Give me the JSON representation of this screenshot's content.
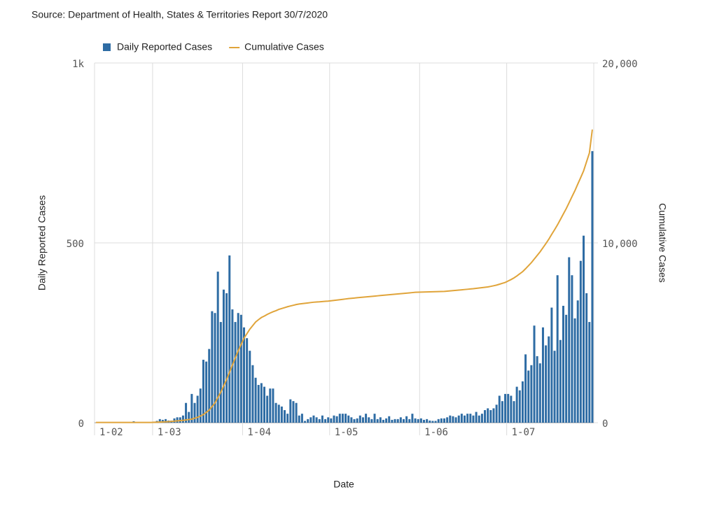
{
  "chart_data": {
    "type": "combo",
    "title": "Source: Department of Health, States & Territories Report 30/7/2020",
    "xlabel": "Date",
    "ylabel": "Daily Reported Cases",
    "y2label": "Cumulative Cases",
    "categories": [
      "1-02",
      null,
      null,
      null,
      null,
      null,
      null,
      null,
      null,
      null,
      null,
      null,
      null,
      null,
      null,
      null,
      null,
      null,
      null,
      null,
      "1-03",
      null,
      null,
      null,
      null,
      null,
      null,
      null,
      null,
      null,
      null,
      null,
      null,
      null,
      null,
      null,
      null,
      null,
      null,
      null,
      null,
      null,
      null,
      null,
      null,
      null,
      null,
      null,
      null,
      null,
      null,
      "1-04",
      null,
      null,
      null,
      null,
      null,
      null,
      null,
      null,
      null,
      null,
      null,
      null,
      null,
      null,
      null,
      null,
      null,
      null,
      null,
      null,
      null,
      null,
      null,
      null,
      null,
      null,
      null,
      null,
      null,
      "1-05",
      null,
      null,
      null,
      null,
      null,
      null,
      null,
      null,
      null,
      null,
      null,
      null,
      null,
      null,
      null,
      null,
      null,
      null,
      null,
      null,
      null,
      null,
      null,
      null,
      null,
      null,
      null,
      null,
      null,
      null,
      "1-06",
      null,
      null,
      null,
      null,
      null,
      null,
      null,
      null,
      null,
      null,
      null,
      null,
      null,
      null,
      null,
      null,
      null,
      null,
      null,
      null,
      null,
      null,
      null,
      null,
      null,
      null,
      null,
      null,
      null,
      "1-07",
      null,
      null,
      null,
      null,
      null,
      null,
      null,
      null,
      null,
      null,
      null,
      null,
      null,
      null,
      null,
      null,
      null,
      null,
      null,
      null,
      null,
      null,
      null,
      null,
      null,
      null,
      null,
      null,
      null
    ],
    "series": [
      {
        "name": "Daily Reported Cases",
        "type": "bar",
        "color": "#2e6ca4",
        "values": [
          0,
          0,
          0,
          0,
          0,
          0,
          0,
          0,
          0,
          0,
          0,
          0,
          0,
          4,
          0,
          0,
          0,
          0,
          0,
          0,
          3,
          5,
          10,
          8,
          10,
          6,
          6,
          12,
          15,
          15,
          20,
          55,
          30,
          80,
          55,
          75,
          95,
          175,
          170,
          205,
          310,
          305,
          420,
          280,
          370,
          360,
          465,
          315,
          280,
          305,
          300,
          265,
          235,
          200,
          160,
          125,
          105,
          110,
          100,
          75,
          95,
          95,
          55,
          50,
          45,
          35,
          25,
          65,
          60,
          55,
          20,
          25,
          5,
          10,
          15,
          20,
          15,
          10,
          20,
          10,
          15,
          12,
          20,
          18,
          25,
          25,
          25,
          20,
          15,
          10,
          12,
          20,
          15,
          25,
          15,
          10,
          25,
          10,
          15,
          8,
          12,
          18,
          8,
          10,
          10,
          15,
          10,
          18,
          10,
          25,
          12,
          10,
          12,
          8,
          10,
          6,
          5,
          5,
          10,
          12,
          12,
          15,
          20,
          18,
          15,
          20,
          25,
          20,
          25,
          25,
          20,
          30,
          20,
          25,
          35,
          40,
          35,
          40,
          50,
          75,
          60,
          80,
          80,
          75,
          60,
          100,
          90,
          115,
          190,
          145,
          160,
          270,
          185,
          165,
          265,
          215,
          240,
          320,
          200,
          410,
          230,
          325,
          300,
          460,
          410,
          290,
          340,
          450,
          520,
          360,
          280,
          755
        ]
      },
      {
        "name": "Cumulative Cases",
        "type": "line",
        "axis": "y2",
        "color": "#e0a43a",
        "values": [
          15,
          15,
          15,
          15,
          15,
          15,
          15,
          15,
          15,
          15,
          15,
          15,
          15,
          15,
          15,
          15,
          15,
          15,
          15,
          15,
          25,
          30,
          38,
          45,
          52,
          60,
          72,
          86,
          100,
          115,
          130,
          155,
          178,
          200,
          250,
          300,
          375,
          450,
          575,
          700,
          900,
          1100,
          1400,
          1700,
          2050,
          2400,
          2800,
          3200,
          3600,
          4000,
          4350,
          4700,
          4950,
          5200,
          5400,
          5600,
          5730,
          5850,
          5930,
          6020,
          6100,
          6170,
          6230,
          6300,
          6350,
          6400,
          6450,
          6490,
          6530,
          6570,
          6600,
          6620,
          6640,
          6660,
          6680,
          6700,
          6710,
          6720,
          6735,
          6750,
          6760,
          6780,
          6800,
          6820,
          6840,
          6860,
          6880,
          6900,
          6915,
          6930,
          6950,
          6965,
          6980,
          6995,
          7010,
          7025,
          7040,
          7055,
          7070,
          7085,
          7100,
          7115,
          7130,
          7145,
          7160,
          7175,
          7190,
          7205,
          7220,
          7235,
          7250,
          7255,
          7260,
          7265,
          7270,
          7275,
          7280,
          7285,
          7290,
          7295,
          7300,
          7315,
          7330,
          7345,
          7360,
          7375,
          7390,
          7405,
          7420,
          7435,
          7450,
          7470,
          7490,
          7510,
          7530,
          7550,
          7580,
          7615,
          7650,
          7700,
          7750,
          7800,
          7880,
          7960,
          8050,
          8160,
          8280,
          8400,
          8560,
          8730,
          8900,
          9100,
          9300,
          9500,
          9730,
          9960,
          10200,
          10470,
          10730,
          11000,
          11300,
          11600,
          11900,
          12230,
          12570,
          12900,
          13270,
          13630,
          14000,
          14500,
          15000,
          16300
        ]
      }
    ],
    "ylim": [
      0,
      1000
    ],
    "yticks": [
      0,
      500,
      {
        "value": 1000,
        "label": "1k"
      }
    ],
    "y2lim": [
      0,
      20000
    ],
    "y2ticks": [
      0,
      {
        "value": 10000,
        "label": "10,000"
      },
      {
        "value": 20000,
        "label": "20,000"
      }
    ],
    "grid": true,
    "legend": "top"
  }
}
